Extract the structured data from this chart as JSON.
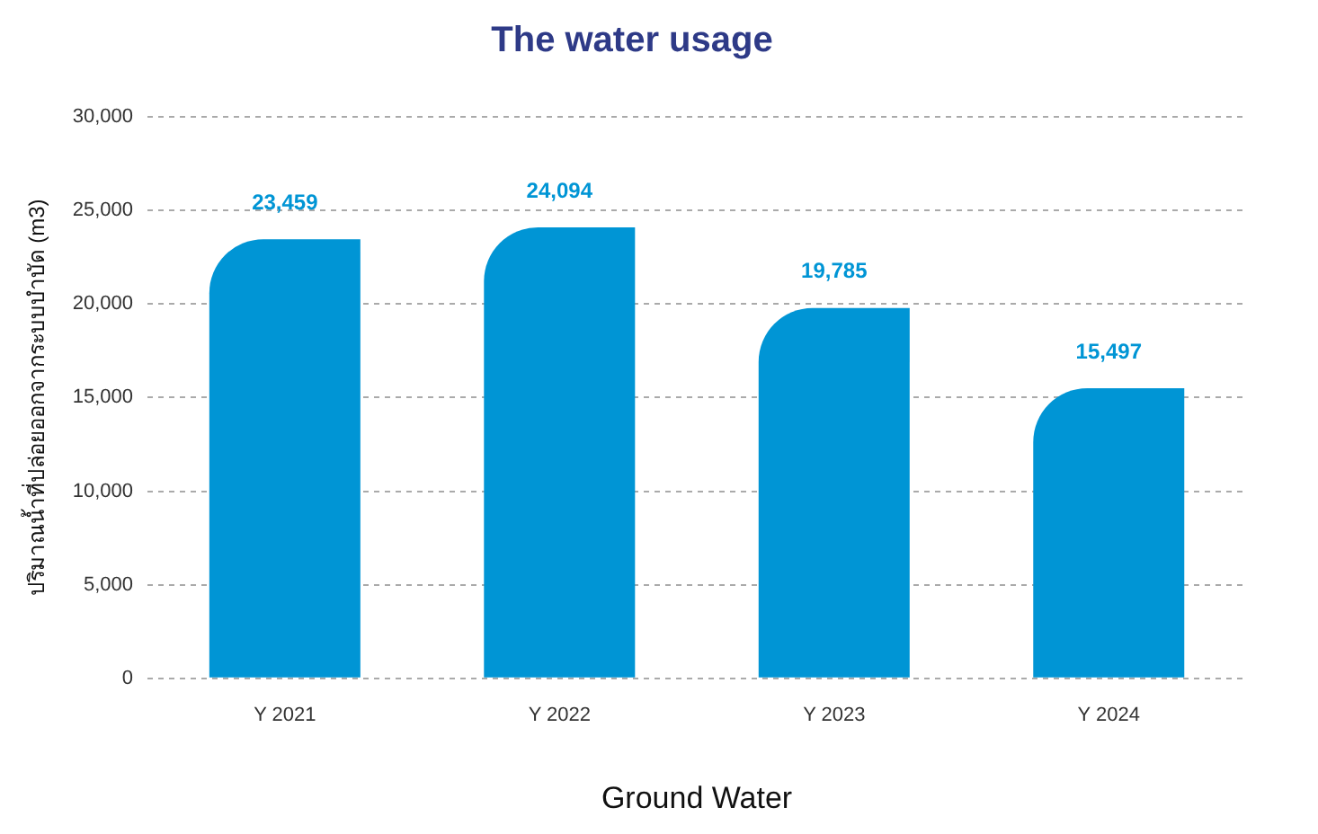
{
  "chart_data": {
    "type": "bar",
    "title": "The water usage",
    "xlabel": "Ground Water",
    "ylabel": "ปริมาณน้ำที่ปล่อยออกจากระบบบำบัด (m3)",
    "categories": [
      "Y 2021",
      "Y 2022",
      "Y 2023",
      "Y 2024"
    ],
    "values": [
      23459,
      24094,
      19785,
      15497
    ],
    "value_labels": [
      "23,459",
      "24,094",
      "19,785",
      "15,497"
    ],
    "color": "#0095d5",
    "ylim": [
      0,
      30000
    ],
    "yticks": [
      {
        "value": 0,
        "label": "0"
      },
      {
        "value": 5000,
        "label": "5,000"
      },
      {
        "value": 10000,
        "label": "10,000"
      },
      {
        "value": 15000,
        "label": "15,000"
      },
      {
        "value": 20000,
        "label": "20,000"
      },
      {
        "value": 25000,
        "label": "25,000"
      },
      {
        "value": 30000,
        "label": "30,000"
      }
    ],
    "grid": "y",
    "legend": false
  }
}
